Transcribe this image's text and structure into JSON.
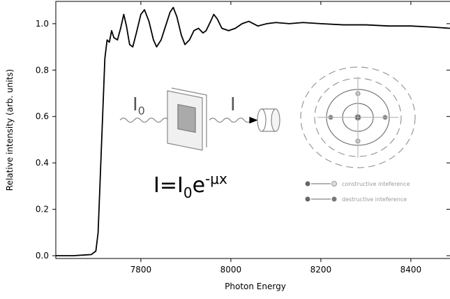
{
  "chart_data": {
    "type": "line",
    "x_label": "Photon Energy",
    "y_label": "Relative intensity (arb. units)",
    "x": [
      7611,
      7650,
      7690,
      7700,
      7705,
      7710,
      7715,
      7720,
      7725,
      7730,
      7735,
      7740,
      7748,
      7755,
      7762,
      7768,
      7775,
      7782,
      7790,
      7800,
      7808,
      7818,
      7828,
      7835,
      7845,
      7855,
      7865,
      7872,
      7880,
      7890,
      7898,
      7908,
      7918,
      7928,
      7938,
      7945,
      7955,
      7962,
      7970,
      7980,
      7995,
      8010,
      8025,
      8040,
      8060,
      8080,
      8100,
      8130,
      8160,
      8200,
      8250,
      8300,
      8350,
      8400,
      8450,
      8487
    ],
    "series": [
      {
        "color": "#000000",
        "values": [
          0.0,
          0.0,
          0.005,
          0.02,
          0.1,
          0.35,
          0.6,
          0.85,
          0.93,
          0.92,
          0.97,
          0.94,
          0.93,
          0.98,
          1.04,
          0.99,
          0.91,
          0.9,
          0.96,
          1.04,
          1.06,
          1.01,
          0.93,
          0.9,
          0.93,
          0.99,
          1.05,
          1.07,
          1.03,
          0.95,
          0.91,
          0.93,
          0.97,
          0.98,
          0.96,
          0.97,
          1.01,
          1.04,
          1.02,
          0.98,
          0.97,
          0.98,
          1.0,
          1.01,
          0.99,
          1.0,
          1.005,
          1.0,
          1.005,
          1.0,
          0.995,
          0.995,
          0.99,
          0.99,
          0.985,
          0.98
        ]
      }
    ],
    "xlim": [
      7611,
      8487
    ],
    "xticks": [
      7800,
      8000,
      8200,
      8400
    ],
    "ylim": [
      -0.012,
      1.096
    ],
    "yticks": [
      {
        "value": 0,
        "label": "0.0"
      },
      {
        "value": 0.2,
        "label": "0.2"
      },
      {
        "value": 0.4,
        "label": "0.4"
      },
      {
        "value": 0.6,
        "label": "0.6"
      },
      {
        "value": 0.8,
        "label": "0.8"
      },
      {
        "value": 1.0,
        "label": "1.0"
      }
    ],
    "annotations": {
      "incident": {
        "main": "I",
        "sub": "0"
      },
      "transmitted": "I",
      "formula": {
        "lhs": "I=I",
        "sub": "0",
        "base": "e",
        "sup": "-μx"
      },
      "constructive": "constructive inteference",
      "destructive": "destructive inteference"
    }
  }
}
